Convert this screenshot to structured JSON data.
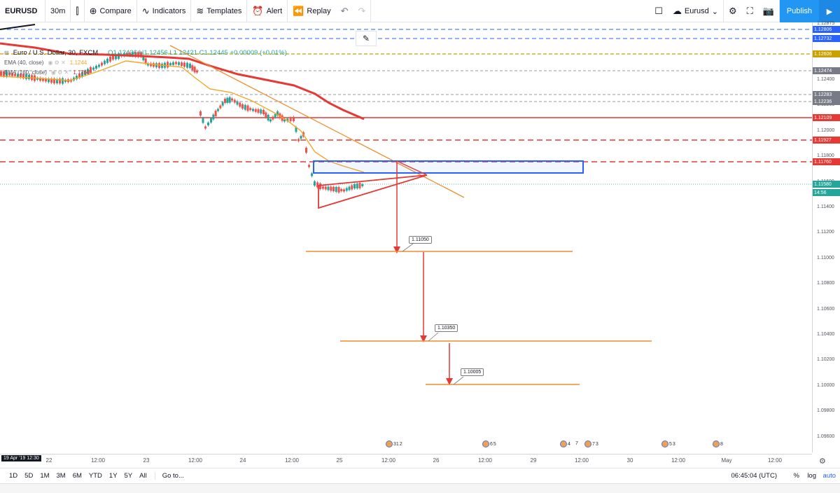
{
  "toolbar": {
    "symbol": "EURUSD",
    "interval": "30m",
    "compare": "Compare",
    "indicators": "Indicators",
    "templates": "Templates",
    "alert": "Alert",
    "replay": "Replay",
    "layout_name": "Eurusd",
    "publish": "Publish"
  },
  "legend": {
    "title": "Euro / U.S. Dollar, 30, FXCM",
    "ohlc": "O1.12436  H1.12456  L1.12421  C1.12445  +0.00009 (+0.01%)",
    "ema40": "EMA (40, close)",
    "ema40_value": "1.1244",
    "ema160": "EMA (160, close)",
    "ema160_value": "1.1268"
  },
  "price_axis": {
    "ticks": [
      "1.12400",
      "1.12200",
      "1.12000",
      "1.11800",
      "1.11600",
      "1.11400",
      "1.11200",
      "1.11000",
      "1.10800",
      "1.10600",
      "1.10400",
      "1.10200",
      "1.10000",
      "1.09800",
      "1.09600"
    ],
    "top_tick": "1.12875",
    "badges": [
      {
        "label": "1.12806",
        "color": "#2962ff"
      },
      {
        "label": "1.12732",
        "color": "#2962ff"
      },
      {
        "label": "1.12606",
        "color": "#c8a200"
      },
      {
        "label": "1.12474",
        "color": "#787b86"
      },
      {
        "label": "1.12283",
        "color": "#787b86"
      },
      {
        "label": "1.12236",
        "color": "#787b86"
      },
      {
        "label": "1.12109",
        "color": "#e53935"
      },
      {
        "label": "1.11927",
        "color": "#e53935"
      },
      {
        "label": "1.11760",
        "color": "#e53935"
      },
      {
        "label": "1.11580",
        "color": "#26a69a"
      },
      {
        "label": "14:56",
        "color": "#26a69a"
      }
    ]
  },
  "time_axis": {
    "start_label": "19 Apr '19  12:30",
    "labels": [
      "22",
      "12:00",
      "23",
      "12:00",
      "24",
      "12:00",
      "25",
      "12:00",
      "26",
      "12:00",
      "29",
      "12:00",
      "30",
      "12:00",
      "May",
      "12:00"
    ]
  },
  "annotations": {
    "target1": "1.11050",
    "target2": "1.10350",
    "target3": "1.10005"
  },
  "events": [
    "31",
    "2",
    "6",
    "5",
    "4",
    "7",
    "7",
    "3",
    "5",
    "3",
    "8"
  ],
  "bottombar": {
    "ranges": [
      "1D",
      "5D",
      "1M",
      "3M",
      "6M",
      "YTD",
      "1Y",
      "5Y",
      "All"
    ],
    "goto": "Go to...",
    "clock": "06:45:04 (UTC)",
    "percent": "%",
    "log": "log",
    "auto": "auto"
  },
  "colors": {
    "up": "#26a69a",
    "down": "#ef5350",
    "ema_short": "#f5a623",
    "ema_long": "#e53935",
    "trend": "#f08c2c",
    "target_line": "#f08c2c",
    "resistance": "#e53935",
    "box": "#2962ff"
  }
}
